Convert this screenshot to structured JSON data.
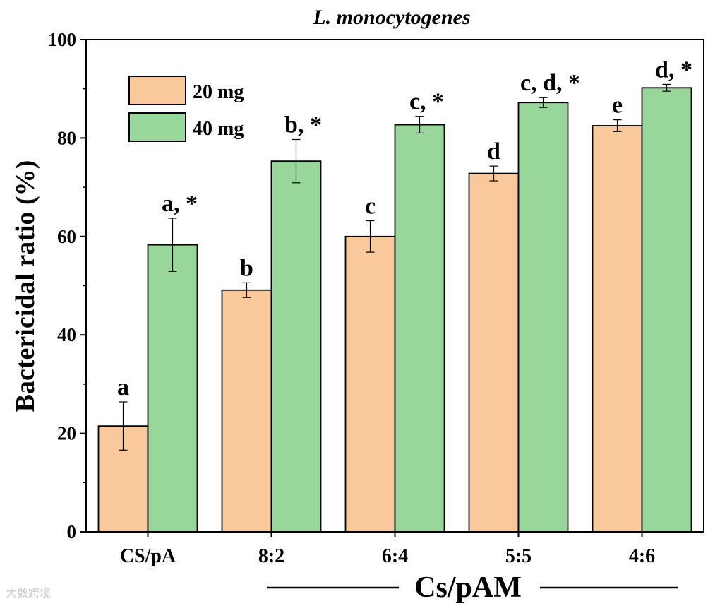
{
  "chart_data": {
    "type": "bar",
    "title": "L. monocytogenes",
    "ylabel": "Bactericidal ratio (%)",
    "xlabel": "Cs/pAM",
    "ylim": [
      0,
      100
    ],
    "yticks": [
      0,
      20,
      40,
      60,
      80,
      100
    ],
    "categories": [
      "CS/pA",
      "8:2",
      "6:4",
      "5:5",
      "4:6"
    ],
    "series": [
      {
        "name": "20 mg",
        "color": "#f9c89b",
        "values": [
          21.5,
          49.1,
          60.0,
          72.8,
          82.5
        ],
        "errors": [
          4.9,
          1.5,
          3.2,
          1.5,
          1.2
        ],
        "labels": [
          "a",
          "b",
          "c",
          "d",
          "e"
        ]
      },
      {
        "name": "40 mg",
        "color": "#99d69a",
        "values": [
          58.3,
          75.3,
          82.7,
          87.2,
          90.2
        ],
        "errors": [
          5.4,
          4.4,
          1.7,
          1.0,
          0.7
        ],
        "labels": [
          "a, *",
          "b, *",
          "c, *",
          "c, d, *",
          "d, *"
        ]
      }
    ],
    "legend_position": "top-left"
  },
  "watermark": "大数跨境"
}
